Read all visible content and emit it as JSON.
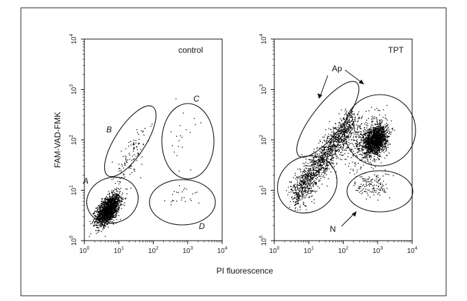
{
  "figure": {
    "ylabel": "FAM-VAD-FMK",
    "xlabel": "PI fluorescence"
  },
  "chart_data": [
    {
      "type": "scatter",
      "panel_label": "control",
      "xlabel": "PI fluorescence",
      "ylabel": "FAM-VAD-FMK",
      "xscale": "log",
      "yscale": "log",
      "xlim": [
        1,
        10000
      ],
      "ylim": [
        1,
        10000
      ],
      "x_ticks": [
        "10^0",
        "10^1",
        "10^2",
        "10^3",
        "10^4"
      ],
      "y_ticks": [
        "10^0",
        "10^1",
        "10^2",
        "10^3",
        "10^4"
      ],
      "gates": [
        {
          "label": "A",
          "center": [
            6,
            5
          ],
          "note": "main dense population (live cells)"
        },
        {
          "label": "B",
          "center": [
            25,
            150
          ],
          "note": "tilted ellipse, sparse"
        },
        {
          "label": "C",
          "center": [
            800,
            120
          ],
          "note": "sparse"
        },
        {
          "label": "D",
          "center": [
            900,
            8
          ],
          "note": "sparse"
        }
      ],
      "populations": [
        {
          "gate": "A",
          "density": "very high",
          "x_center": 5,
          "y_center": 4.5
        },
        {
          "gate": "B",
          "density": "low",
          "x_center": 25,
          "y_center": 60
        },
        {
          "gate": "C",
          "density": "very low",
          "x_center": 700,
          "y_center": 100
        },
        {
          "gate": "D",
          "density": "very low",
          "x_center": 800,
          "y_center": 8
        }
      ]
    },
    {
      "type": "scatter",
      "panel_label": "TPT",
      "xlabel": "PI fluorescence",
      "ylabel": "FAM-VAD-FMK",
      "xscale": "log",
      "yscale": "log",
      "xlim": [
        1,
        10000
      ],
      "ylim": [
        1,
        10000
      ],
      "x_ticks": [
        "10^0",
        "10^1",
        "10^2",
        "10^3",
        "10^4"
      ],
      "y_ticks": [
        "10^0",
        "10^1",
        "10^2",
        "10^3",
        "10^4"
      ],
      "annotations": [
        {
          "text": "Ap",
          "points_to": "upper-left tilted gate (apoptotic)"
        },
        {
          "text": "N",
          "points_to": "lower-right gate (necrotic)"
        }
      ],
      "populations": [
        {
          "description": "diagonal apoptotic band",
          "x_range": [
            3,
            300
          ],
          "y_range": [
            5,
            500
          ],
          "density": "high"
        },
        {
          "description": "upper-right dense cluster",
          "x_center": 800,
          "y_center": 100,
          "density": "very high"
        },
        {
          "description": "lower-right sparse cluster",
          "x_center": 700,
          "y_center": 12,
          "density": "low"
        }
      ]
    }
  ]
}
